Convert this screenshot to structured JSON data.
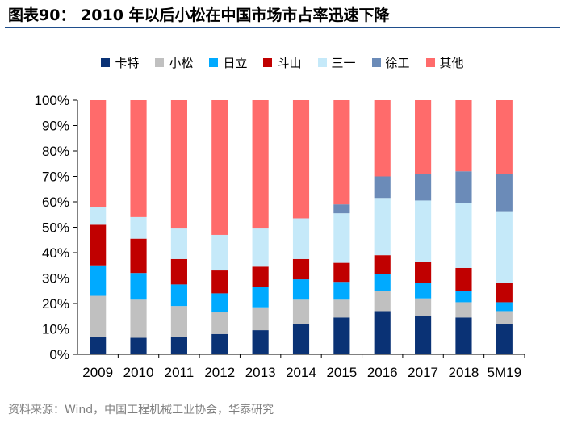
{
  "header": {
    "title": "图表90：  2010 年以后小松在中国市场市占率迅速下降"
  },
  "footer": {
    "source": "资料来源：Wind，中国工程机械工业协会，华泰研究"
  },
  "chart_data": {
    "type": "bar",
    "stacked": true,
    "title": "2010 年以后小松在中国市场市占率迅速下降",
    "categories": [
      "2009",
      "2010",
      "2011",
      "2012",
      "2013",
      "2014",
      "2015",
      "2016",
      "2017",
      "2018",
      "5M19"
    ],
    "y_ticks": [
      "0%",
      "10%",
      "20%",
      "30%",
      "40%",
      "50%",
      "60%",
      "70%",
      "80%",
      "90%",
      "100%"
    ],
    "ylim": [
      0,
      100
    ],
    "legend_position": "top",
    "series": [
      {
        "name": "卡特",
        "color": "#0a3275",
        "values": [
          7,
          6.5,
          7,
          8,
          9.5,
          12,
          14.5,
          17,
          15,
          14.5,
          12
        ]
      },
      {
        "name": "小松",
        "color": "#c0c0c0",
        "values": [
          16,
          15,
          12,
          8.5,
          9,
          9.5,
          7,
          8,
          7,
          6,
          5
        ]
      },
      {
        "name": "日立",
        "color": "#00aaff",
        "values": [
          12,
          10.5,
          8.5,
          7.5,
          8,
          8,
          7,
          6.5,
          6,
          4.5,
          3.5
        ]
      },
      {
        "name": "斗山",
        "color": "#c00000",
        "values": [
          16,
          13.5,
          10,
          9,
          8,
          8,
          7.5,
          7.5,
          8.5,
          9,
          7.5
        ]
      },
      {
        "name": "三一",
        "color": "#c5e9f9",
        "values": [
          7,
          8.5,
          12,
          14,
          15,
          16,
          19.5,
          22.5,
          24,
          25.5,
          28
        ]
      },
      {
        "name": "徐工",
        "color": "#6b8bb8",
        "values": [
          0,
          0,
          0,
          0,
          0,
          0,
          3.5,
          8.5,
          10.5,
          12.5,
          15
        ]
      },
      {
        "name": "其他",
        "color": "#ff6b6b",
        "values": [
          42,
          46,
          50.5,
          53,
          50.5,
          46.5,
          41,
          30,
          29,
          28,
          29
        ]
      }
    ]
  }
}
